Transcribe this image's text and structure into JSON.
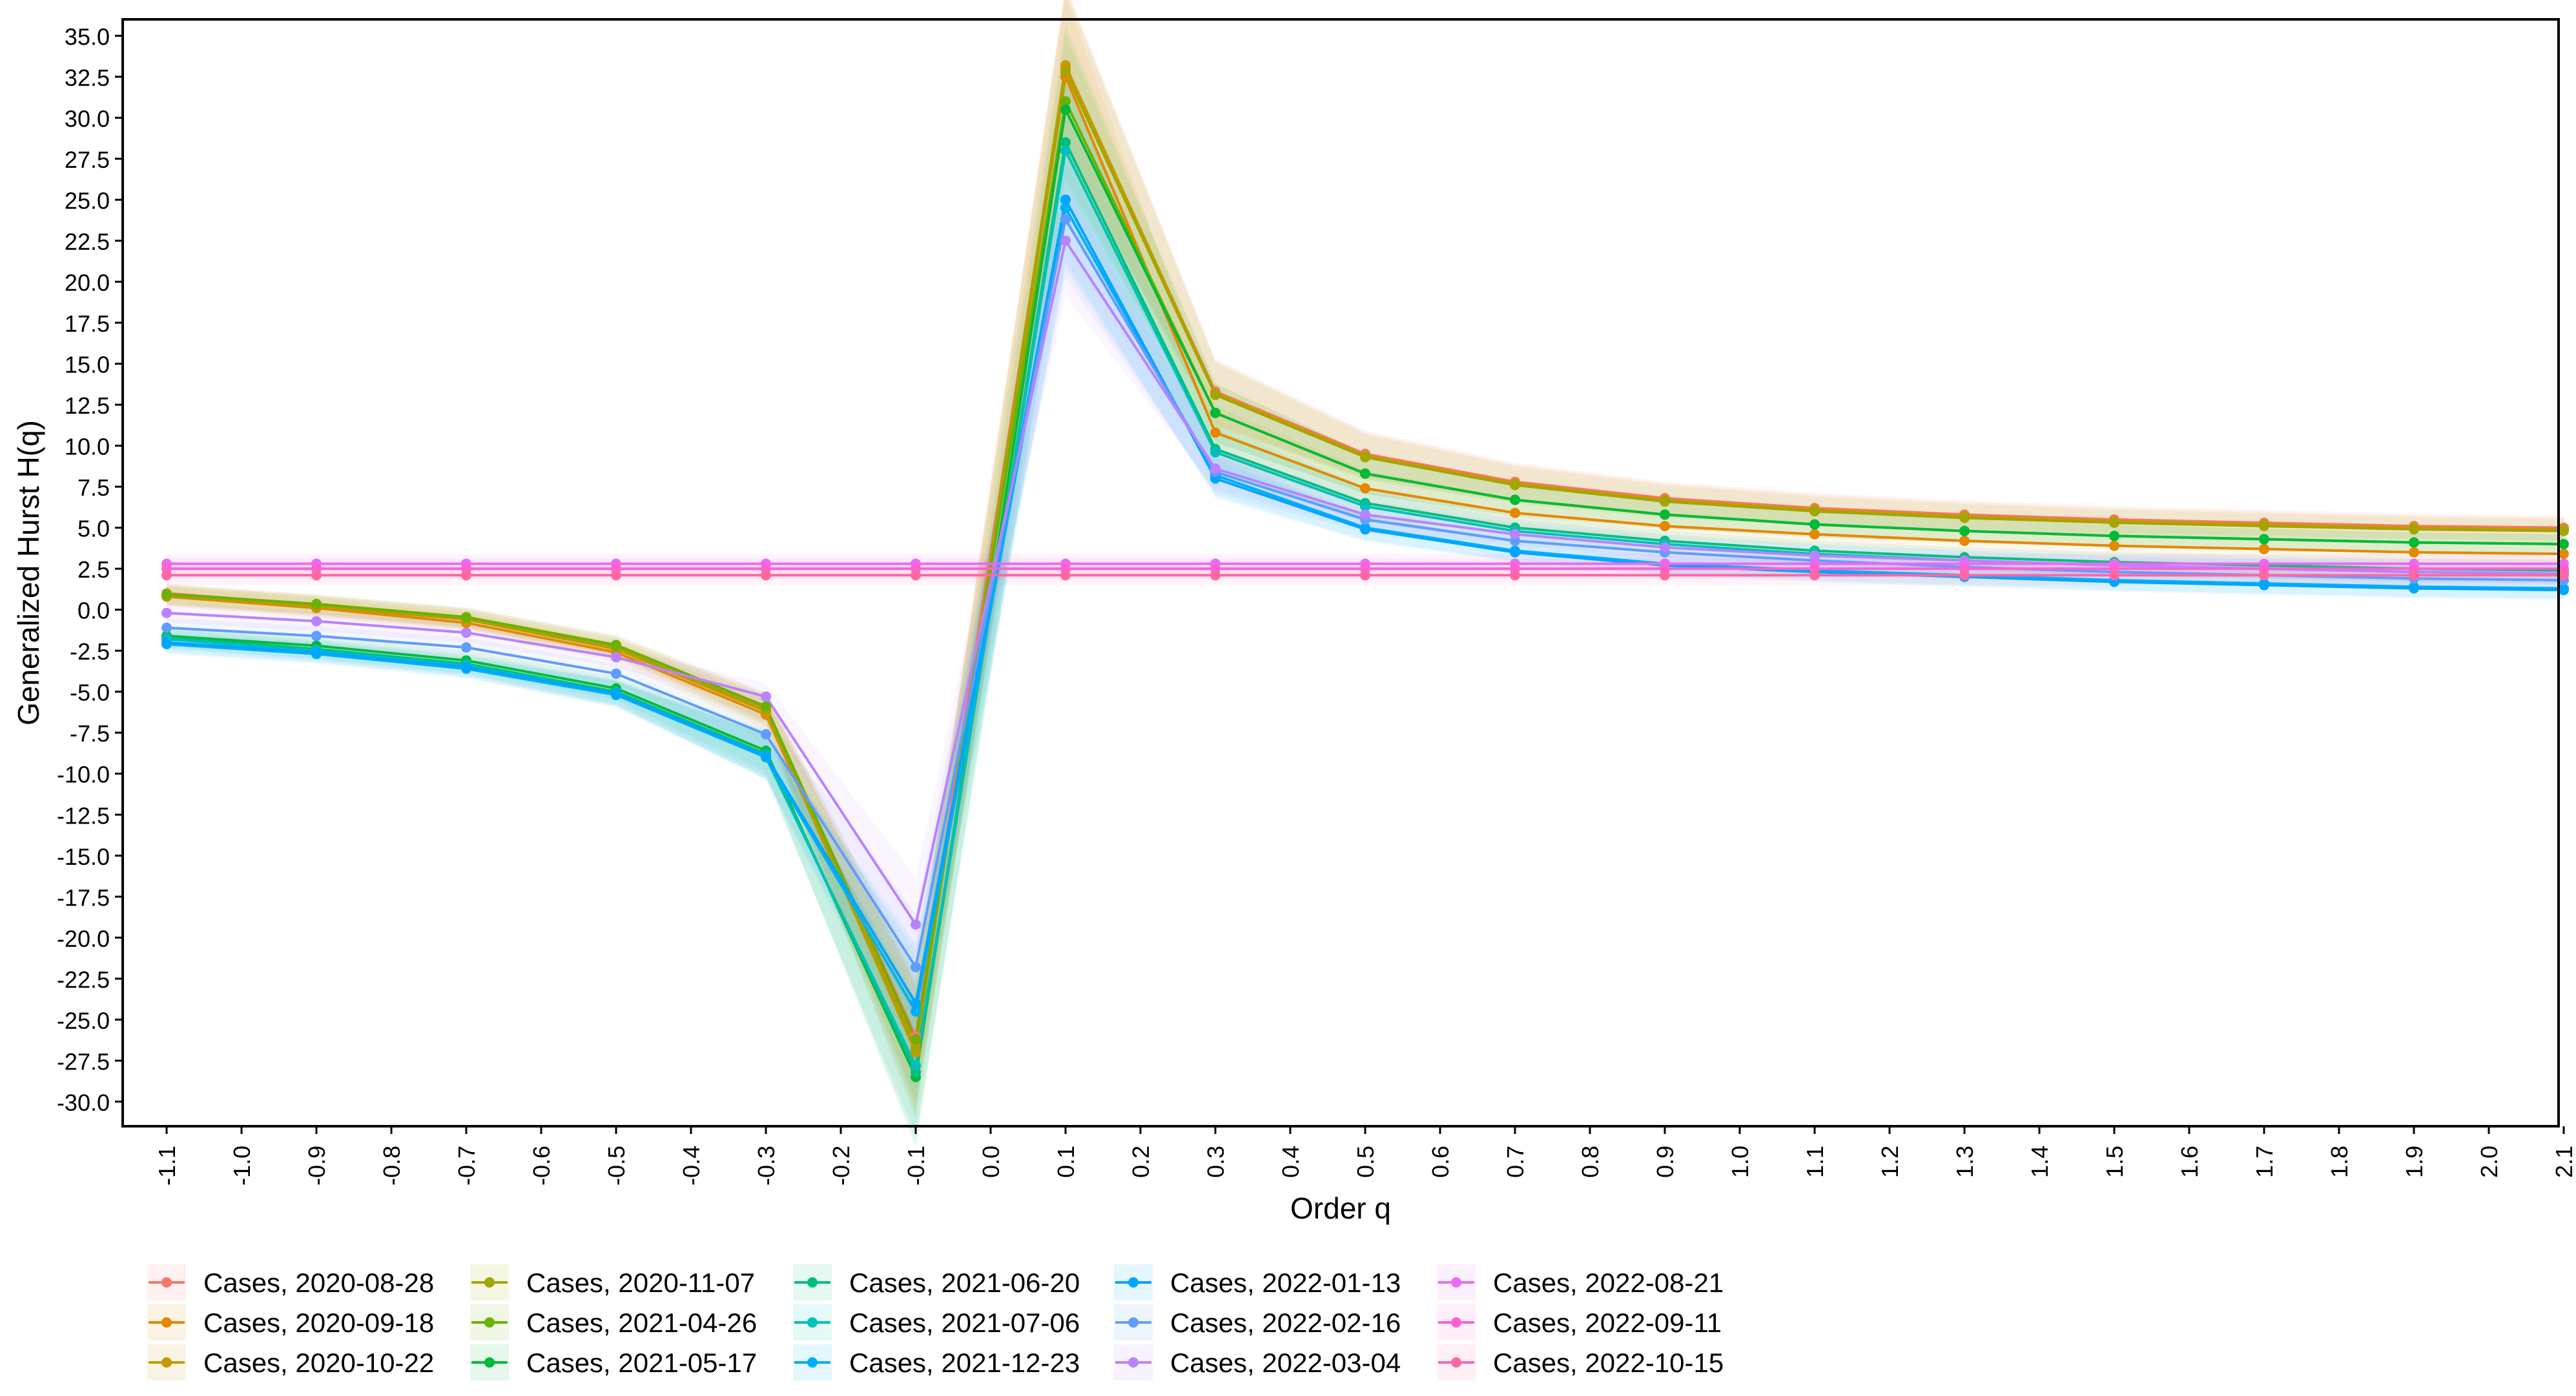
{
  "chart_data": {
    "type": "line",
    "title": "",
    "xlabel": "Order q",
    "ylabel": "Generalized Hurst H(q)",
    "xlim": [
      -1.1,
      2.1
    ],
    "ylim": [
      -31.5,
      36.0
    ],
    "x_ticks": [
      "-1.1",
      "-1.0",
      "-0.9",
      "-0.8",
      "-0.7",
      "-0.6",
      "-0.5",
      "-0.4",
      "-0.3",
      "-0.2",
      "-0.1",
      "0.0",
      "0.1",
      "0.2",
      "0.3",
      "0.4",
      "0.5",
      "0.6",
      "0.7",
      "0.8",
      "0.9",
      "1.0",
      "1.1",
      "1.2",
      "1.3",
      "1.4",
      "1.5",
      "1.6",
      "1.7",
      "1.8",
      "1.9",
      "2.0",
      "2.1"
    ],
    "y_ticks": [
      "-30.0",
      "-27.5",
      "-25.0",
      "-22.5",
      "-20.0",
      "-17.5",
      "-15.0",
      "-12.5",
      "-10.0",
      "-7.5",
      "-5.0",
      "-2.5",
      "0.0",
      "2.5",
      "5.0",
      "7.5",
      "10.0",
      "12.5",
      "15.0",
      "17.5",
      "20.0",
      "22.5",
      "25.0",
      "27.5",
      "30.0",
      "32.5",
      "35.0"
    ],
    "grid": false,
    "legend_position": "bottom",
    "confidence_bands": true,
    "x": [
      -1.1,
      -0.9,
      -0.7,
      -0.5,
      -0.3,
      -0.1,
      0.1,
      0.3,
      0.5,
      0.7,
      0.9,
      1.1,
      1.3,
      1.5,
      1.7,
      1.9,
      2.1
    ],
    "series": [
      {
        "name": "Cases, 2020-08-28",
        "color": "#F8766D",
        "values": [
          1.0,
          0.3,
          -0.5,
          -2.2,
          -6.0,
          -26.0,
          33.0,
          13.3,
          9.5,
          7.8,
          6.8,
          6.2,
          5.8,
          5.5,
          5.3,
          5.1,
          5.0
        ]
      },
      {
        "name": "Cases, 2020-09-18",
        "color": "#E58700",
        "values": [
          0.8,
          0.1,
          -0.8,
          -2.6,
          -6.4,
          -26.5,
          32.5,
          10.8,
          7.4,
          5.9,
          5.1,
          4.6,
          4.2,
          3.9,
          3.7,
          3.5,
          3.4
        ]
      },
      {
        "name": "Cases, 2020-10-22",
        "color": "#C99800",
        "values": [
          0.9,
          0.2,
          -0.6,
          -2.4,
          -6.2,
          -27.0,
          33.2,
          13.2,
          9.4,
          7.7,
          6.7,
          6.1,
          5.7,
          5.4,
          5.2,
          5.0,
          4.9
        ]
      },
      {
        "name": "Cases, 2020-11-07",
        "color": "#A3A500",
        "values": [
          0.85,
          0.25,
          -0.55,
          -2.3,
          -6.1,
          -26.8,
          32.8,
          13.1,
          9.3,
          7.6,
          6.6,
          6.0,
          5.6,
          5.3,
          5.1,
          4.9,
          4.8
        ]
      },
      {
        "name": "Cases, 2021-04-26",
        "color": "#6BB100",
        "values": [
          0.95,
          0.35,
          -0.45,
          -2.15,
          -5.9,
          -26.2,
          31.0,
          12.0,
          8.3,
          6.7,
          5.8,
          5.2,
          4.8,
          4.5,
          4.3,
          4.1,
          4.0
        ]
      },
      {
        "name": "Cases, 2021-05-17",
        "color": "#00BA38",
        "values": [
          -1.6,
          -2.2,
          -3.1,
          -4.8,
          -8.6,
          -28.5,
          30.5,
          12.0,
          8.3,
          6.7,
          5.8,
          5.2,
          4.8,
          4.5,
          4.3,
          4.1,
          4.0
        ]
      },
      {
        "name": "Cases, 2021-06-20",
        "color": "#00BF7D",
        "values": [
          -1.7,
          -2.4,
          -3.3,
          -5.0,
          -8.8,
          -28.2,
          28.5,
          9.8,
          6.5,
          5.0,
          4.2,
          3.6,
          3.2,
          2.9,
          2.7,
          2.5,
          2.4
        ]
      },
      {
        "name": "Cases, 2021-07-06",
        "color": "#00C0B8",
        "values": [
          -1.8,
          -2.5,
          -3.4,
          -5.1,
          -9.0,
          -27.8,
          28.0,
          9.6,
          6.3,
          4.8,
          4.0,
          3.4,
          3.0,
          2.7,
          2.5,
          2.3,
          2.2
        ]
      },
      {
        "name": "Cases, 2021-12-23",
        "color": "#00B0F6",
        "values": [
          -2.1,
          -2.7,
          -3.6,
          -5.2,
          -9.0,
          -24.5,
          24.5,
          8.2,
          5.0,
          3.6,
          2.8,
          2.4,
          2.1,
          1.8,
          1.6,
          1.4,
          1.3
        ]
      },
      {
        "name": "Cases, 2022-01-13",
        "color": "#00A5FF",
        "values": [
          -2.0,
          -2.6,
          -3.5,
          -5.1,
          -8.9,
          -24.0,
          25.0,
          8.0,
          4.9,
          3.5,
          2.7,
          2.3,
          2.0,
          1.7,
          1.5,
          1.3,
          1.2
        ]
      },
      {
        "name": "Cases, 2022-02-16",
        "color": "#619CFF",
        "values": [
          -1.1,
          -1.6,
          -2.3,
          -3.9,
          -7.6,
          -21.8,
          23.8,
          8.4,
          5.5,
          4.2,
          3.5,
          3.0,
          2.6,
          2.3,
          2.1,
          1.9,
          1.8
        ]
      },
      {
        "name": "Cases, 2022-03-04",
        "color": "#B983FF",
        "values": [
          -0.2,
          -0.7,
          -1.4,
          -2.9,
          -5.3,
          -19.2,
          22.5,
          8.6,
          5.8,
          4.6,
          3.8,
          3.3,
          3.0,
          2.7,
          2.5,
          2.3,
          2.2
        ]
      },
      {
        "name": "Cases, 2022-08-21",
        "color": "#E76BF3",
        "values": [
          2.8,
          2.8,
          2.8,
          2.8,
          2.8,
          2.8,
          2.8,
          2.8,
          2.8,
          2.8,
          2.8,
          2.8,
          2.8,
          2.8,
          2.8,
          2.8,
          2.8
        ]
      },
      {
        "name": "Cases, 2022-09-11",
        "color": "#FD61D1",
        "values": [
          2.5,
          2.5,
          2.5,
          2.5,
          2.5,
          2.5,
          2.5,
          2.5,
          2.5,
          2.5,
          2.5,
          2.5,
          2.5,
          2.5,
          2.5,
          2.5,
          2.5
        ]
      },
      {
        "name": "Cases, 2022-10-15",
        "color": "#FF67A4",
        "values": [
          2.1,
          2.1,
          2.1,
          2.1,
          2.1,
          2.1,
          2.1,
          2.1,
          2.1,
          2.1,
          2.1,
          2.1,
          2.1,
          2.1,
          2.1,
          2.1,
          2.1
        ]
      }
    ]
  }
}
